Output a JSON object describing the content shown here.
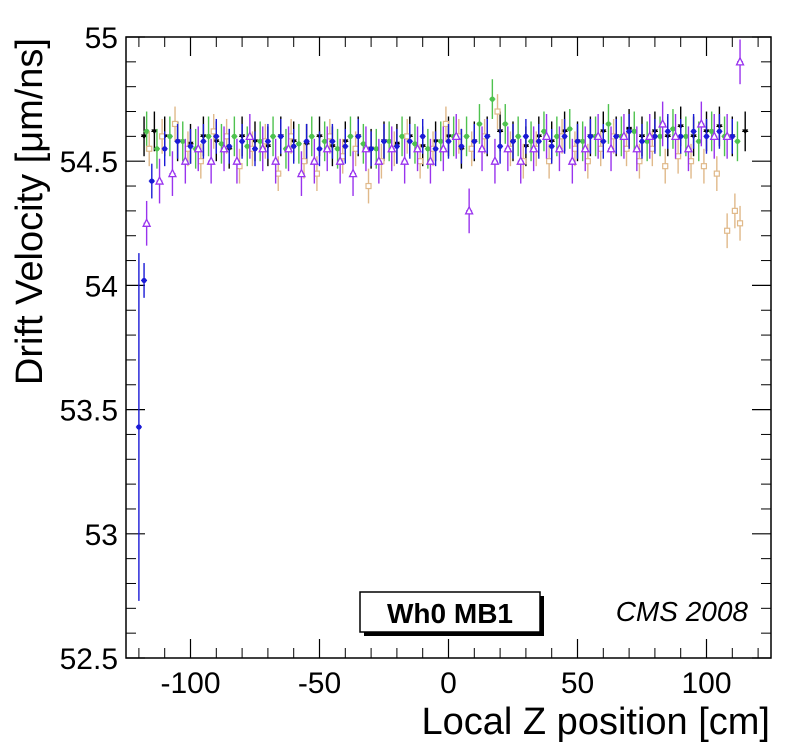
{
  "chart_data": {
    "type": "scatter",
    "title": "",
    "xlabel": "Local Z position [cm]",
    "ylabel": "Drift Velocity [μm/ns]",
    "xlim": [
      -125,
      125
    ],
    "ylim": [
      52.5,
      55.0
    ],
    "xticks": [
      -100,
      -50,
      0,
      50,
      100
    ],
    "xtick_labels": [
      "-100",
      "-50",
      "0",
      "50",
      "100"
    ],
    "yticks": [
      52.5,
      53.0,
      53.5,
      54.0,
      54.5,
      55.0
    ],
    "ytick_labels": [
      "52.5",
      "53",
      "53.5",
      "54",
      "54.5",
      "55"
    ],
    "grid": false,
    "legend_box": "Wh0 MB1",
    "annotation": "CMS 2008",
    "series": [
      {
        "name": "black (down triangles)",
        "color": "#000000",
        "marker": "triangle-down",
        "x": [
          -118,
          -114,
          -110,
          -105,
          -100,
          -95,
          -90,
          -85,
          -80,
          -75,
          -70,
          -65,
          -60,
          -55,
          -50,
          -45,
          -40,
          -35,
          -30,
          -25,
          -20,
          -15,
          -10,
          -5,
          0,
          5,
          10,
          15,
          20,
          25,
          30,
          35,
          40,
          45,
          50,
          55,
          60,
          65,
          70,
          75,
          80,
          85,
          90,
          95,
          100,
          105,
          110,
          115
        ],
        "y": [
          54.6,
          54.62,
          54.6,
          54.58,
          54.57,
          54.6,
          54.58,
          54.55,
          54.6,
          54.58,
          54.56,
          54.6,
          54.58,
          54.57,
          54.6,
          54.56,
          54.58,
          54.6,
          54.55,
          54.58,
          54.57,
          54.6,
          54.56,
          54.58,
          54.6,
          54.55,
          54.58,
          54.6,
          54.62,
          54.58,
          54.56,
          54.6,
          54.58,
          54.62,
          54.58,
          54.6,
          54.62,
          54.6,
          54.63,
          54.6,
          54.62,
          54.6,
          54.64,
          54.6,
          54.62,
          54.64,
          54.6,
          54.62
        ],
        "yerr": 0.08
      },
      {
        "name": "green (filled circles)",
        "color": "#4ec24e",
        "marker": "circle",
        "x": [
          -117,
          -113,
          -108,
          -103,
          -98,
          -93,
          -88,
          -83,
          -78,
          -73,
          -68,
          -63,
          -58,
          -53,
          -48,
          -43,
          -38,
          -33,
          -28,
          -23,
          -18,
          -13,
          -8,
          -3,
          2,
          7,
          12,
          17,
          22,
          27,
          32,
          37,
          42,
          47,
          52,
          57,
          62,
          67,
          72,
          77,
          82,
          87,
          92,
          97,
          102,
          107,
          112
        ],
        "y": [
          54.62,
          54.55,
          54.6,
          54.58,
          54.55,
          54.6,
          54.57,
          54.6,
          54.56,
          54.58,
          54.6,
          54.55,
          54.57,
          54.6,
          54.58,
          54.55,
          54.6,
          54.57,
          54.55,
          54.58,
          54.6,
          54.57,
          54.55,
          54.58,
          54.6,
          54.6,
          54.65,
          54.75,
          54.65,
          54.6,
          54.58,
          54.62,
          54.6,
          54.63,
          54.58,
          54.6,
          54.65,
          54.6,
          54.62,
          54.58,
          54.6,
          54.63,
          54.6,
          54.58,
          54.62,
          54.6,
          54.58
        ],
        "yerr": 0.08
      },
      {
        "name": "tan (open squares)",
        "color": "#e0b98a",
        "marker": "square-open",
        "x": [
          -116,
          -111,
          -106,
          -101,
          -96,
          -91,
          -86,
          -81,
          -76,
          -71,
          -66,
          -61,
          -56,
          -51,
          -46,
          -41,
          -36,
          -31,
          -26,
          -21,
          -16,
          -11,
          -6,
          -1,
          4,
          9,
          14,
          19,
          24,
          29,
          34,
          39,
          44,
          49,
          54,
          59,
          64,
          69,
          74,
          79,
          84,
          89,
          94,
          99,
          104,
          108,
          111,
          113
        ],
        "y": [
          54.55,
          54.6,
          54.65,
          54.55,
          54.5,
          54.62,
          54.6,
          54.48,
          54.55,
          54.58,
          54.45,
          54.6,
          54.5,
          54.45,
          54.6,
          54.52,
          54.55,
          54.4,
          54.5,
          54.55,
          54.6,
          54.5,
          54.55,
          54.65,
          54.6,
          54.55,
          54.6,
          54.7,
          54.55,
          54.5,
          54.55,
          54.5,
          54.6,
          54.55,
          54.5,
          54.55,
          54.6,
          54.55,
          54.5,
          54.55,
          54.48,
          54.52,
          54.5,
          54.48,
          54.45,
          54.22,
          54.3,
          54.25
        ],
        "yerr": 0.07
      },
      {
        "name": "blue (filled circles)",
        "color": "#1a1ad6",
        "marker": "circle",
        "x": [
          -120,
          -118,
          -115,
          -110,
          -105,
          -100,
          -95,
          -90,
          -85,
          -80,
          -75,
          -70,
          -65,
          -60,
          -55,
          -50,
          -45,
          -40,
          -35,
          -30,
          -25,
          -20,
          -15,
          -10,
          -5,
          0,
          5,
          10,
          15,
          20,
          25,
          30,
          35,
          40,
          45,
          50,
          55,
          60,
          65,
          70,
          75,
          80,
          85,
          90,
          95,
          100,
          105,
          110
        ],
        "y": [
          53.43,
          54.02,
          54.42,
          54.55,
          54.58,
          54.56,
          54.58,
          54.6,
          54.56,
          54.58,
          54.55,
          54.58,
          54.6,
          54.56,
          54.58,
          54.55,
          54.58,
          54.56,
          54.6,
          54.55,
          54.58,
          54.56,
          54.58,
          54.6,
          54.55,
          54.58,
          54.56,
          54.58,
          54.6,
          54.56,
          54.58,
          54.6,
          54.58,
          54.56,
          54.6,
          54.58,
          54.6,
          54.58,
          54.6,
          54.62,
          54.58,
          54.6,
          54.62,
          54.6,
          54.62,
          54.6,
          54.62,
          54.6
        ],
        "yerr": 0.07
      },
      {
        "name": "purple (open triangles)",
        "color": "#9933ee",
        "marker": "triangle-open",
        "x": [
          -117,
          -112,
          -107,
          -102,
          -97,
          -92,
          -87,
          -82,
          -77,
          -72,
          -67,
          -62,
          -57,
          -52,
          -47,
          -42,
          -37,
          -32,
          -27,
          -22,
          -17,
          -12,
          -7,
          -2,
          3,
          8,
          13,
          18,
          23,
          28,
          33,
          38,
          43,
          48,
          53,
          58,
          63,
          68,
          73,
          78,
          83,
          88,
          93,
          98,
          103,
          108,
          113
        ],
        "y": [
          54.25,
          54.42,
          54.45,
          54.5,
          54.55,
          54.5,
          54.55,
          54.5,
          54.6,
          54.55,
          54.5,
          54.55,
          54.45,
          54.5,
          54.55,
          54.5,
          54.45,
          54.55,
          54.5,
          54.55,
          54.5,
          54.55,
          54.5,
          54.55,
          54.6,
          54.3,
          54.55,
          54.5,
          54.55,
          54.5,
          54.55,
          54.6,
          54.55,
          54.5,
          54.55,
          54.6,
          54.55,
          54.6,
          54.55,
          54.6,
          54.65,
          54.6,
          54.55,
          54.65,
          54.6,
          54.6,
          54.9
        ],
        "yerr": 0.09
      }
    ]
  }
}
